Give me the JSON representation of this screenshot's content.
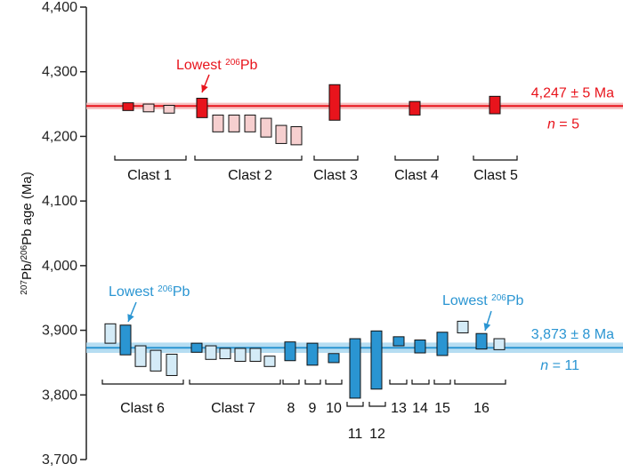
{
  "chart_data": {
    "type": "bar",
    "ylabel": "207Pb/206Pb age (Ma)",
    "ylabel_parts": [
      {
        "text": "207",
        "sup": true
      },
      {
        "text": "Pb/",
        "sup": false
      },
      {
        "text": "206",
        "sup": true
      },
      {
        "text": "Pb age (Ma)",
        "sup": false
      }
    ],
    "ylim": [
      3700,
      4400
    ],
    "yticks": [
      3700,
      3800,
      3900,
      4000,
      4100,
      4200,
      4300,
      4400
    ],
    "ytick_labels": [
      "3,700",
      "3,800",
      "3,900",
      "4,000",
      "4,100",
      "4,200",
      "4,300",
      "4,400"
    ],
    "grid": false,
    "groups": [
      {
        "name": "red",
        "color": "#e8141c",
        "light_color": "#f6cfcf",
        "line_color": "#e8141c",
        "band_color": "#f5b5b5",
        "mean": 4247,
        "band": [
          4242,
          4252
        ],
        "mean_label": "4,247 ± 5 Ma",
        "n_label_italic": "n",
        "n_label_rest": " = 5",
        "annotation": {
          "text": "Lowest ",
          "sup": "206",
          "rest": "Pb"
        },
        "bars": [
          {
            "clast": "Clast 1",
            "low": 4240,
            "high": 4252,
            "style": "dark"
          },
          {
            "clast": "Clast 1",
            "low": 4238,
            "high": 4250,
            "style": "light"
          },
          {
            "clast": "Clast 1",
            "low": 4236,
            "high": 4248,
            "style": "light"
          },
          {
            "clast": "Clast 2",
            "low": 4229,
            "high": 4259,
            "style": "dark"
          },
          {
            "clast": "Clast 2",
            "low": 4207,
            "high": 4233,
            "style": "light"
          },
          {
            "clast": "Clast 2",
            "low": 4207,
            "high": 4233,
            "style": "light"
          },
          {
            "clast": "Clast 2",
            "low": 4207,
            "high": 4233,
            "style": "light"
          },
          {
            "clast": "Clast 2",
            "low": 4199,
            "high": 4228,
            "style": "light"
          },
          {
            "clast": "Clast 2",
            "low": 4189,
            "high": 4217,
            "style": "light"
          },
          {
            "clast": "Clast 2",
            "low": 4187,
            "high": 4215,
            "style": "light"
          },
          {
            "clast": "Clast 3",
            "low": 4225,
            "high": 4280,
            "style": "dark"
          },
          {
            "clast": "Clast 4",
            "low": 4233,
            "high": 4254,
            "style": "dark"
          },
          {
            "clast": "Clast 5",
            "low": 4235,
            "high": 4262,
            "style": "dark"
          }
        ],
        "clasts": [
          "Clast 1",
          "Clast 2",
          "Clast 3",
          "Clast 4",
          "Clast 5"
        ]
      },
      {
        "name": "blue",
        "color": "#2a95d2",
        "light_color": "#d4ebf7",
        "line_color": "#2a95d2",
        "band_color": "#a9d7f0",
        "mean": 3873,
        "band": [
          3865,
          3881
        ],
        "mean_label": "3,873 ± 8 Ma",
        "n_label_italic": "n",
        "n_label_rest": " = 11",
        "annotation": {
          "text": "Lowest ",
          "sup": "206",
          "rest": "Pb"
        },
        "bars": [
          {
            "clast": "Clast 6",
            "low": 3880,
            "high": 3910,
            "style": "light"
          },
          {
            "clast": "Clast 6",
            "low": 3862,
            "high": 3908,
            "style": "dark"
          },
          {
            "clast": "Clast 6",
            "low": 3844,
            "high": 3876,
            "style": "light"
          },
          {
            "clast": "Clast 6",
            "low": 3837,
            "high": 3869,
            "style": "light"
          },
          {
            "clast": "Clast 6",
            "low": 3830,
            "high": 3863,
            "style": "light"
          },
          {
            "clast": "Clast 7",
            "low": 3866,
            "high": 3880,
            "style": "dark"
          },
          {
            "clast": "Clast 7",
            "low": 3855,
            "high": 3876,
            "style": "light"
          },
          {
            "clast": "Clast 7",
            "low": 3856,
            "high": 3872,
            "style": "light"
          },
          {
            "clast": "Clast 7",
            "low": 3852,
            "high": 3872,
            "style": "light"
          },
          {
            "clast": "Clast 7",
            "low": 3852,
            "high": 3872,
            "style": "light"
          },
          {
            "clast": "Clast 7",
            "low": 3844,
            "high": 3860,
            "style": "light"
          },
          {
            "clast": "8",
            "low": 3853,
            "high": 3882,
            "style": "dark"
          },
          {
            "clast": "9",
            "low": 3846,
            "high": 3880,
            "style": "dark"
          },
          {
            "clast": "10",
            "low": 3850,
            "high": 3864,
            "style": "dark"
          },
          {
            "clast": "11",
            "low": 3795,
            "high": 3887,
            "style": "dark"
          },
          {
            "clast": "12",
            "low": 3809,
            "high": 3899,
            "style": "dark"
          },
          {
            "clast": "13",
            "low": 3876,
            "high": 3890,
            "style": "dark"
          },
          {
            "clast": "14",
            "low": 3865,
            "high": 3885,
            "style": "dark"
          },
          {
            "clast": "15",
            "low": 3861,
            "high": 3897,
            "style": "dark"
          },
          {
            "clast": "16",
            "low": 3896,
            "high": 3914,
            "style": "light"
          },
          {
            "clast": "16",
            "low": 3871,
            "high": 3895,
            "style": "dark"
          },
          {
            "clast": "16",
            "low": 3870,
            "high": 3887,
            "style": "light"
          }
        ],
        "clasts": [
          "Clast 6",
          "Clast 7",
          "8",
          "9",
          "10",
          "11",
          "12",
          "13",
          "14",
          "15",
          "16"
        ]
      }
    ]
  }
}
